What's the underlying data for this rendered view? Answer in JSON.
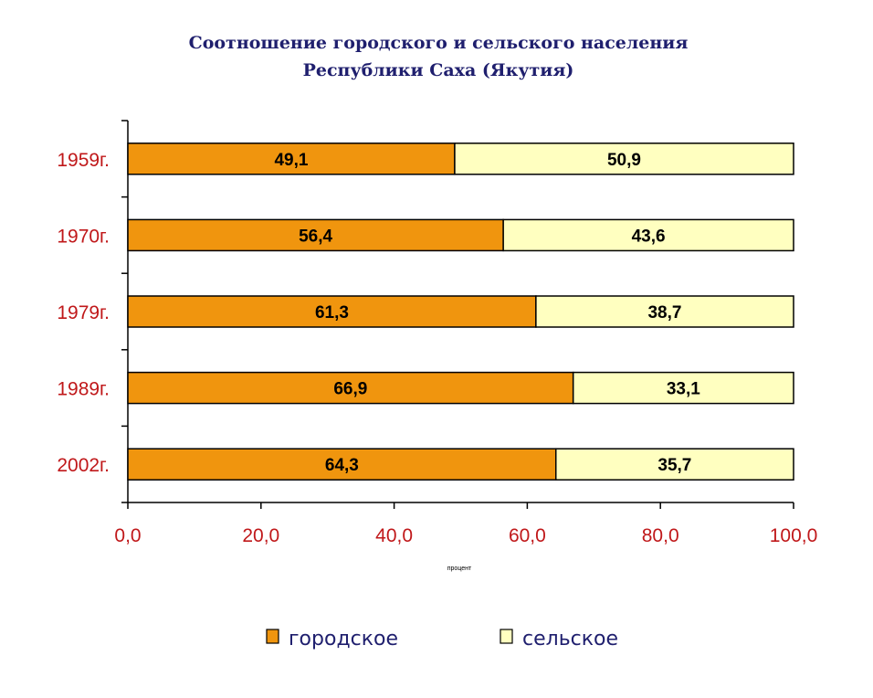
{
  "chart_data": {
    "type": "bar",
    "orientation": "horizontal",
    "stacked": true,
    "title_lines": [
      "Соотношение городского и сельского населения",
      "Республики Саха (Якутия)"
    ],
    "categories": [
      "1959г.",
      "1970г.",
      "1979г.",
      "1989г.",
      "2002г."
    ],
    "series": [
      {
        "name": "городское",
        "color": "#f0950e",
        "values": [
          49.1,
          56.4,
          61.3,
          66.9,
          64.3
        ],
        "labels": [
          "49,1",
          "56,4",
          "61,3",
          "66,9",
          "64,3"
        ]
      },
      {
        "name": "сельское",
        "color": "#ffffc0",
        "values": [
          50.9,
          43.6,
          38.7,
          33.1,
          35.7
        ],
        "labels": [
          "50,9",
          "43,6",
          "38,7",
          "33,1",
          "35,7"
        ]
      }
    ],
    "xlabel": "процент",
    "xlim": [
      0,
      100
    ],
    "xticks": [
      0,
      20,
      40,
      60,
      80,
      100
    ],
    "xtick_labels": [
      "0,0",
      "20,0",
      "40,0",
      "60,0",
      "80,0",
      "100,0"
    ],
    "grid": false,
    "legend": "bottom"
  }
}
